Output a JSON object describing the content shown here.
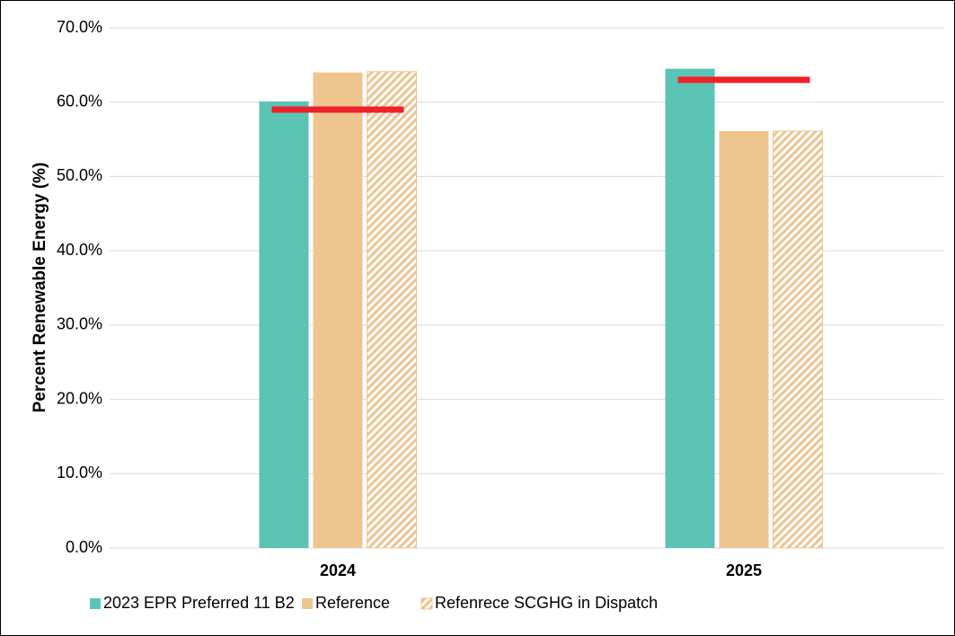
{
  "chart_data": {
    "type": "bar",
    "y_label": "Percent Renewable Energy (%)",
    "categories": [
      "2024",
      "2025"
    ],
    "series": [
      {
        "name": "2023 EPR Preferred 11 B2",
        "color": "#5bc4b5",
        "values": [
          60.1,
          64.5
        ]
      },
      {
        "name": "Reference",
        "color": "#eec48f",
        "values": [
          64.0,
          56.1
        ]
      },
      {
        "name": "Refenrece SCGHG in Dispatch",
        "color": "#eec48f",
        "pattern": "hatch",
        "values": [
          64.1,
          56.1
        ]
      }
    ],
    "target_values": [
      59.0,
      63.0
    ],
    "target_color": "#ee2228",
    "ylim": [
      0,
      70
    ],
    "yticks": [
      {
        "value": 0,
        "label": "0.0%"
      },
      {
        "value": 10,
        "label": "10.0%"
      },
      {
        "value": 20,
        "label": "20.0%"
      },
      {
        "value": 30,
        "label": "30.0%"
      },
      {
        "value": 40,
        "label": "40.0%"
      },
      {
        "value": 50,
        "label": "50.0%"
      },
      {
        "value": 60,
        "label": "60.0%"
      },
      {
        "value": 70,
        "label": "70.0%"
      }
    ],
    "grid": true
  }
}
